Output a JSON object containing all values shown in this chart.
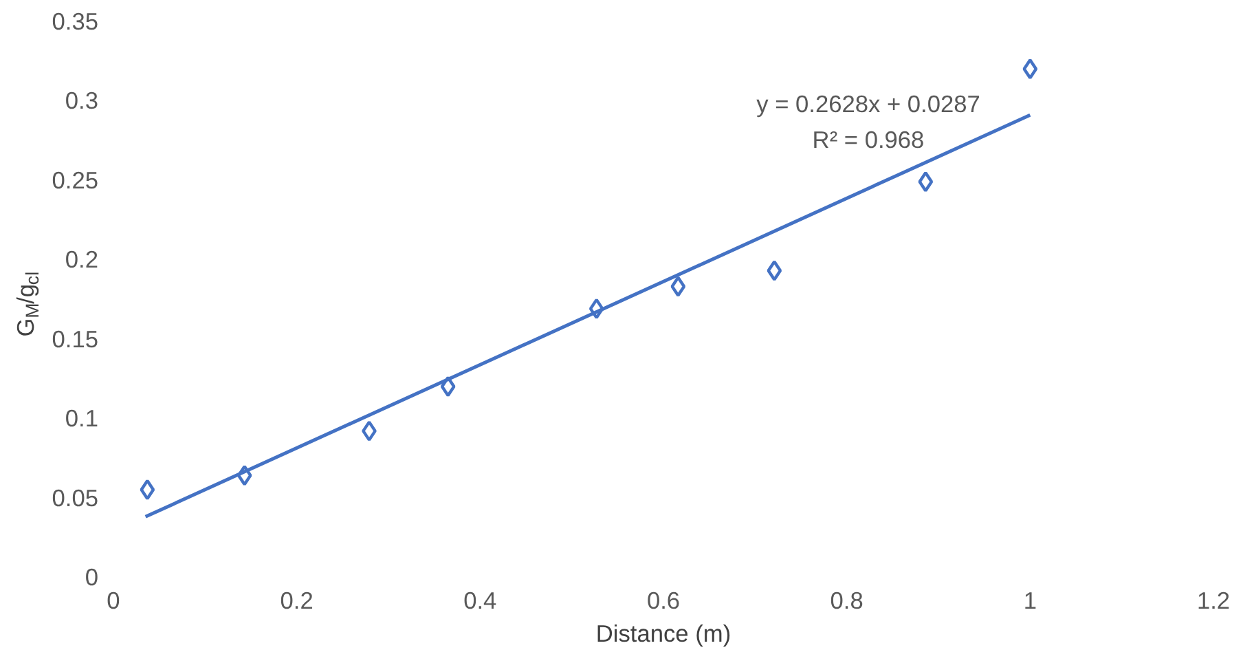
{
  "chart_data": {
    "type": "scatter",
    "xlabel": "Distance (m)",
    "ylabel": "G$_{M}$/g$_{cl}$",
    "xlim": [
      0,
      1.2
    ],
    "xticks": [
      0,
      0.2,
      0.4,
      0.6,
      0.8,
      1,
      1.2
    ],
    "ylim": [
      0,
      0.35
    ],
    "yticks": [
      0,
      0.05,
      0.1,
      0.15,
      0.2,
      0.25,
      0.3,
      0.35
    ],
    "grid": false,
    "series": [
      {
        "marker": "diamond",
        "color": "#4472c4",
        "x": [
          0.037,
          0.143,
          0.279,
          0.365,
          0.527,
          0.616,
          0.721,
          0.886,
          1.0
        ],
        "values": [
          0.055,
          0.064,
          0.092,
          0.12,
          0.169,
          0.183,
          0.193,
          0.249,
          0.32
        ]
      },
      {
        "type": "line",
        "line_style": "solid",
        "color": "#4472c4",
        "x": [
          0.035,
          1.0
        ],
        "values": [
          0.038,
          0.291
        ]
      }
    ],
    "annotations": [
      "y = 0.2628x + 0.0287",
      "R² = 0.968"
    ]
  }
}
